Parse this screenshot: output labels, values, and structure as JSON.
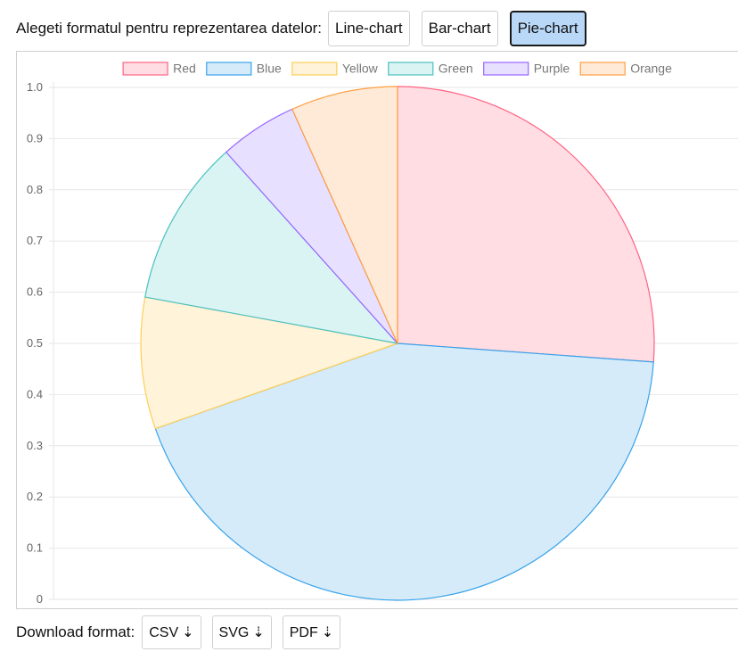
{
  "toolbar": {
    "prompt": "Alegeti formatul pentru reprezentarea datelor:",
    "buttons": [
      {
        "label": "Line-chart",
        "active": false
      },
      {
        "label": "Bar-chart",
        "active": false
      },
      {
        "label": "Pie-chart",
        "active": true
      }
    ]
  },
  "chart_data": {
    "type": "pie",
    "categories": [
      "Red",
      "Blue",
      "Yellow",
      "Green",
      "Purple",
      "Orange"
    ],
    "values": [
      27.2,
      45.2,
      8.6,
      10.9,
      5.1,
      7.0
    ],
    "colors": {
      "Red": {
        "fill": "#ffdde3",
        "stroke": "#ff6384"
      },
      "Blue": {
        "fill": "#d6ebf9",
        "stroke": "#36a2eb"
      },
      "Yellow": {
        "fill": "#fff3da",
        "stroke": "#ffce56"
      },
      "Green": {
        "fill": "#daf3f3",
        "stroke": "#4bc0c0"
      },
      "Purple": {
        "fill": "#e8e0ff",
        "stroke": "#9966ff"
      },
      "Orange": {
        "fill": "#ffead8",
        "stroke": "#ff9f40"
      }
    },
    "yticks": [
      "0",
      "0.1",
      "0.2",
      "0.3",
      "0.4",
      "0.5",
      "0.6",
      "0.7",
      "0.8",
      "0.9",
      "1.0"
    ],
    "ylim": [
      0,
      1
    ],
    "grid": true,
    "legend_position": "top"
  },
  "download": {
    "label": "Download format:",
    "buttons": [
      {
        "label": "CSV",
        "arrow": "⇣"
      },
      {
        "label": "SVG",
        "arrow": "⇣"
      },
      {
        "label": "PDF",
        "arrow": "⇣"
      }
    ]
  }
}
